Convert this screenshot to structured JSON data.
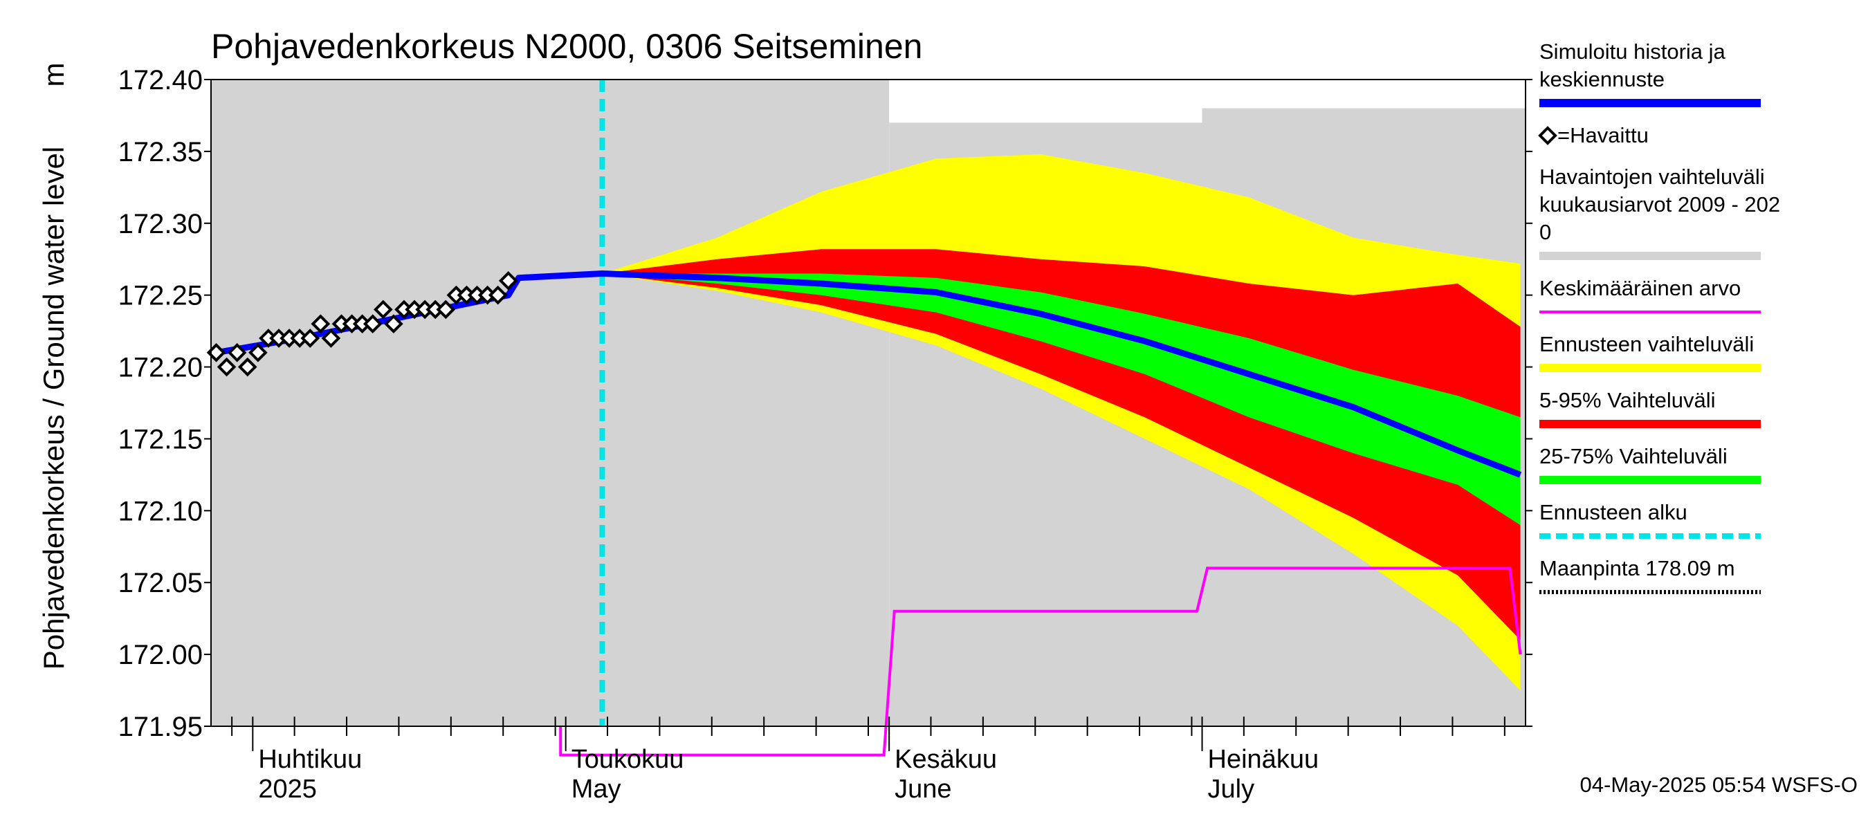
{
  "chart_data": {
    "type": "area",
    "title": "Pohjavedenkorkeus N2000, 0306 Seitseminen",
    "ylabel": "Pohjavedenkorkeus / Ground water level",
    "yunit": "m",
    "ylim": [
      171.95,
      172.4
    ],
    "yticks": [
      "172.40",
      "172.35",
      "172.30",
      "172.25",
      "172.20",
      "172.15",
      "172.10",
      "172.05",
      "172.00",
      "171.95"
    ],
    "xlim": [
      "2025-03-28",
      "2025-07-31"
    ],
    "months": [
      {
        "fi": "Huhtikuu",
        "en": "2025",
        "date": "2025-04-01"
      },
      {
        "fi": "Toukokuu",
        "en": "May",
        "date": "2025-05-01"
      },
      {
        "fi": "Kesäkuu",
        "en": "June",
        "date": "2025-06-01"
      },
      {
        "fi": "Heinäkuu",
        "en": "July",
        "date": "2025-07-01"
      }
    ],
    "forecast_start": "2025-05-04",
    "historical_range_2009_2020": [
      {
        "from": "2025-03-28",
        "to": "2025-05-31",
        "upper": 172.4
      },
      {
        "from": "2025-06-01",
        "to": "2025-06-30",
        "upper": 172.37
      },
      {
        "from": "2025-07-01",
        "to": "2025-07-31",
        "upper": 172.38
      }
    ],
    "observed": [
      {
        "x": "2025-03-28",
        "y": 172.21
      },
      {
        "x": "2025-03-29",
        "y": 172.2
      },
      {
        "x": "2025-03-30",
        "y": 172.21
      },
      {
        "x": "2025-03-31",
        "y": 172.2
      },
      {
        "x": "2025-04-01",
        "y": 172.21
      },
      {
        "x": "2025-04-02",
        "y": 172.22
      },
      {
        "x": "2025-04-03",
        "y": 172.22
      },
      {
        "x": "2025-04-04",
        "y": 172.22
      },
      {
        "x": "2025-04-05",
        "y": 172.22
      },
      {
        "x": "2025-04-06",
        "y": 172.22
      },
      {
        "x": "2025-04-07",
        "y": 172.23
      },
      {
        "x": "2025-04-08",
        "y": 172.22
      },
      {
        "x": "2025-04-09",
        "y": 172.23
      },
      {
        "x": "2025-04-10",
        "y": 172.23
      },
      {
        "x": "2025-04-11",
        "y": 172.23
      },
      {
        "x": "2025-04-12",
        "y": 172.23
      },
      {
        "x": "2025-04-13",
        "y": 172.24
      },
      {
        "x": "2025-04-14",
        "y": 172.23
      },
      {
        "x": "2025-04-15",
        "y": 172.24
      },
      {
        "x": "2025-04-16",
        "y": 172.24
      },
      {
        "x": "2025-04-17",
        "y": 172.24
      },
      {
        "x": "2025-04-18",
        "y": 172.24
      },
      {
        "x": "2025-04-19",
        "y": 172.24
      },
      {
        "x": "2025-04-20",
        "y": 172.25
      },
      {
        "x": "2025-04-21",
        "y": 172.25
      },
      {
        "x": "2025-04-22",
        "y": 172.25
      },
      {
        "x": "2025-04-23",
        "y": 172.25
      },
      {
        "x": "2025-04-24",
        "y": 172.25
      },
      {
        "x": "2025-04-25",
        "y": 172.26
      }
    ],
    "simulated_history_and_median_forecast": [
      {
        "x": "2025-03-28",
        "y": 172.21
      },
      {
        "x": "2025-04-05",
        "y": 172.22
      },
      {
        "x": "2025-04-15",
        "y": 172.235
      },
      {
        "x": "2025-04-25",
        "y": 172.25
      },
      {
        "x": "2025-04-26",
        "y": 172.262
      },
      {
        "x": "2025-05-04",
        "y": 172.265
      },
      {
        "x": "2025-05-15",
        "y": 172.262
      },
      {
        "x": "2025-05-25",
        "y": 172.258
      },
      {
        "x": "2025-06-05",
        "y": 172.252
      },
      {
        "x": "2025-06-15",
        "y": 172.237
      },
      {
        "x": "2025-06-25",
        "y": 172.218
      },
      {
        "x": "2025-07-05",
        "y": 172.195
      },
      {
        "x": "2025-07-15",
        "y": 172.172
      },
      {
        "x": "2025-07-25",
        "y": 172.142
      },
      {
        "x": "2025-07-31",
        "y": 172.125
      }
    ],
    "forecast_range": {
      "x": [
        "2025-05-04",
        "2025-05-15",
        "2025-05-25",
        "2025-06-05",
        "2025-06-15",
        "2025-06-25",
        "2025-07-05",
        "2025-07-15",
        "2025-07-25",
        "2025-07-31"
      ],
      "p0": [
        172.265,
        172.253,
        172.238,
        172.215,
        172.185,
        172.15,
        172.115,
        172.07,
        172.02,
        171.975
      ],
      "p5": [
        172.265,
        172.255,
        172.243,
        172.223,
        172.195,
        172.165,
        172.13,
        172.095,
        172.055,
        172.01
      ],
      "p25": [
        172.265,
        172.258,
        172.25,
        172.238,
        172.218,
        172.195,
        172.165,
        172.14,
        172.118,
        172.09
      ],
      "p75": [
        172.265,
        172.265,
        172.265,
        172.262,
        172.252,
        172.237,
        172.22,
        172.198,
        172.18,
        172.165
      ],
      "p95": [
        172.265,
        172.275,
        172.282,
        172.282,
        172.275,
        172.27,
        172.258,
        172.25,
        172.258,
        172.228
      ],
      "p100": [
        172.265,
        172.29,
        172.322,
        172.345,
        172.348,
        172.335,
        172.318,
        172.29,
        172.278,
        172.272
      ]
    },
    "mean_value": [
      {
        "from": "2025-04-30",
        "to": "2025-05-01",
        "y": 171.93
      },
      {
        "from": "2025-05-01",
        "to": "2025-05-31",
        "y": 171.93
      },
      {
        "from": "2025-06-01",
        "to": "2025-06-30",
        "y": 172.03
      },
      {
        "from": "2025-07-01",
        "to": "2025-07-30",
        "y": 172.06
      },
      {
        "from": "2025-07-31",
        "to": "2025-07-31",
        "y": 172.0
      }
    ],
    "legend": [
      {
        "label": "Simuloitu historia ja\nkeskiennuste",
        "color": "#0000ff"
      },
      {
        "label": "=Havaittu",
        "color": "#000000"
      },
      {
        "label": "Havaintojen vaihteluväli\n kuukausiarvot 2009 - 202\n0",
        "color": "#d3d3d3"
      },
      {
        "label": "Keskimääräinen arvo",
        "color": "#ff00ff"
      },
      {
        "label": "Ennusteen vaihteluväli",
        "color": "#ffff00"
      },
      {
        "label": "5-95% Vaihteluväli",
        "color": "#ff0000"
      },
      {
        "label": "25-75% Vaihteluväli",
        "color": "#00ff00"
      },
      {
        "label": "Ennusteen alku",
        "color": "#00e5e5"
      },
      {
        "label": "Maanpinta 178.09 m",
        "color": "#000000"
      }
    ],
    "footer": "04-May-2025 05:54 WSFS-O"
  }
}
